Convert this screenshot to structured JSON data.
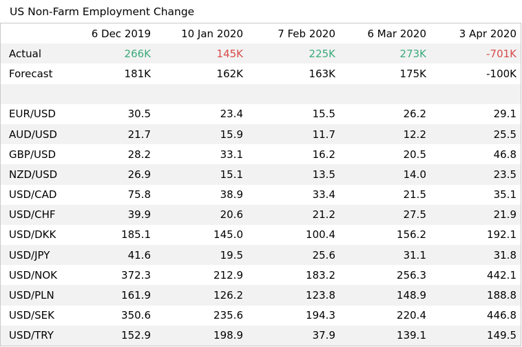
{
  "title": "US Non-Farm Employment Change",
  "colors": {
    "positive": "#3aaa7a",
    "negative": "#d84a4a",
    "row_shade": "#f2f2f2",
    "border": "#c8c8c8"
  },
  "columns": [
    "6 Dec 2019",
    "10 Jan 2020",
    "7 Feb 2020",
    "6 Mar 2020",
    "3 Apr 2020"
  ],
  "actual": {
    "label": "Actual",
    "values": [
      "266K",
      "145K",
      "225K",
      "273K",
      "-701K"
    ],
    "tones": [
      "positive",
      "negative",
      "positive",
      "positive",
      "negative"
    ]
  },
  "forecast": {
    "label": "Forecast",
    "values": [
      "181K",
      "162K",
      "163K",
      "175K",
      "-100K"
    ]
  },
  "pairs": [
    {
      "label": "EUR/USD",
      "values": [
        "30.5",
        "23.4",
        "15.5",
        "26.2",
        "29.1"
      ]
    },
    {
      "label": "AUD/USD",
      "values": [
        "21.7",
        "15.9",
        "11.7",
        "12.2",
        "25.5"
      ]
    },
    {
      "label": "GBP/USD",
      "values": [
        "28.2",
        "33.1",
        "16.2",
        "20.5",
        "46.8"
      ]
    },
    {
      "label": "NZD/USD",
      "values": [
        "26.9",
        "15.1",
        "13.5",
        "14.0",
        "23.5"
      ]
    },
    {
      "label": "USD/CAD",
      "values": [
        "75.8",
        "38.9",
        "33.4",
        "21.5",
        "35.1"
      ]
    },
    {
      "label": "USD/CHF",
      "values": [
        "39.9",
        "20.6",
        "21.2",
        "27.5",
        "21.9"
      ]
    },
    {
      "label": "USD/DKK",
      "values": [
        "185.1",
        "145.0",
        "100.4",
        "156.2",
        "192.1"
      ]
    },
    {
      "label": "USD/JPY",
      "values": [
        "41.6",
        "19.5",
        "25.6",
        "31.1",
        "31.8"
      ]
    },
    {
      "label": "USD/NOK",
      "values": [
        "372.3",
        "212.9",
        "183.2",
        "256.3",
        "442.1"
      ]
    },
    {
      "label": "USD/PLN",
      "values": [
        "161.9",
        "126.2",
        "123.8",
        "148.9",
        "188.8"
      ]
    },
    {
      "label": "USD/SEK",
      "values": [
        "350.6",
        "235.6",
        "194.3",
        "220.4",
        "446.8"
      ]
    },
    {
      "label": "USD/TRY",
      "values": [
        "152.9",
        "198.9",
        "37.9",
        "139.1",
        "149.5"
      ]
    }
  ]
}
